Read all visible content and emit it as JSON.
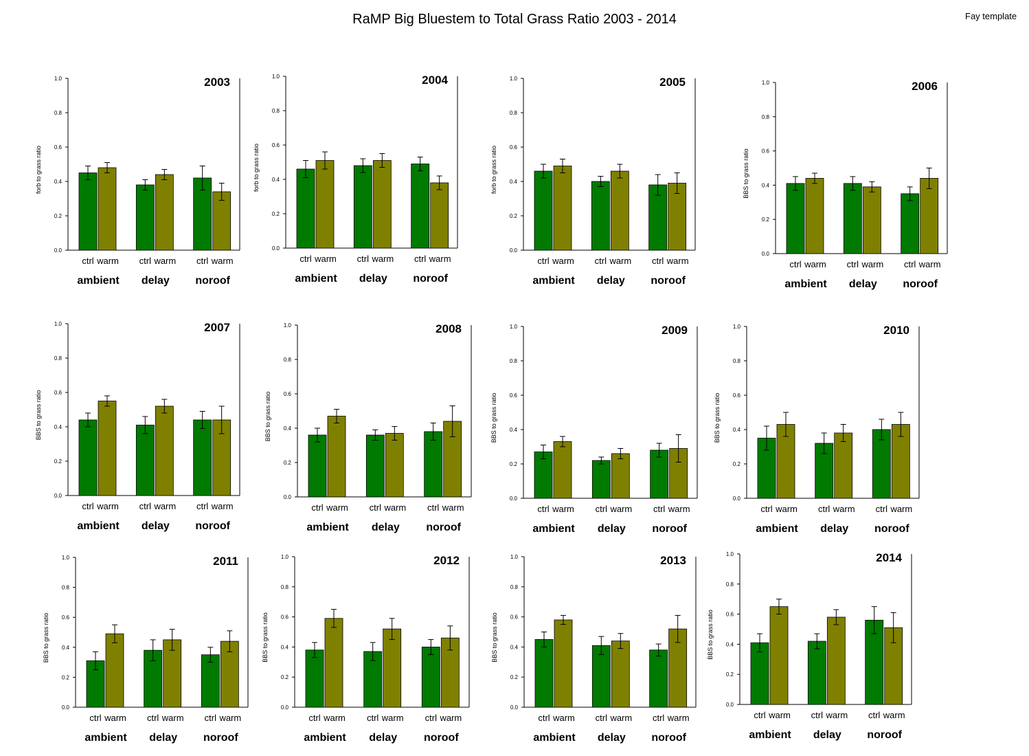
{
  "title": "RaMP Big Bluestem to Total Grass Ratio 2003 - 2014",
  "corner_note": "Fay template",
  "colors": {
    "ctrl": "#007a00",
    "warm": "#808000",
    "axis": "#000000"
  },
  "tick_labels": [
    "0.0",
    "0.2",
    "0.4",
    "0.6",
    "0.8",
    "1.0"
  ],
  "chart_data": [
    {
      "type": "bar",
      "title": "2003",
      "ylabel": "forb to grass ratio",
      "ylim": [
        0,
        1
      ],
      "categories": [
        "ambient",
        "delay",
        "noroof"
      ],
      "sublabels": [
        "ctrl",
        "warm"
      ],
      "series": [
        {
          "name": "ctrl",
          "values": [
            0.45,
            0.38,
            0.42
          ],
          "errors": [
            0.04,
            0.03,
            0.07
          ]
        },
        {
          "name": "warm",
          "values": [
            0.48,
            0.44,
            0.34
          ],
          "errors": [
            0.03,
            0.03,
            0.05
          ]
        }
      ]
    },
    {
      "type": "bar",
      "title": "2004",
      "ylabel": "forb to grass ratio",
      "ylim": [
        0,
        1
      ],
      "categories": [
        "ambient",
        "delay",
        "noroof"
      ],
      "sublabels": [
        "ctrl",
        "warm"
      ],
      "series": [
        {
          "name": "ctrl",
          "values": [
            0.46,
            0.48,
            0.49
          ],
          "errors": [
            0.05,
            0.04,
            0.04
          ]
        },
        {
          "name": "warm",
          "values": [
            0.51,
            0.51,
            0.38
          ],
          "errors": [
            0.05,
            0.04,
            0.04
          ]
        }
      ]
    },
    {
      "type": "bar",
      "title": "2005",
      "ylabel": "forb to grass ratio",
      "ylim": [
        0,
        1
      ],
      "categories": [
        "ambient",
        "delay",
        "noroof"
      ],
      "sublabels": [
        "ctrl",
        "warm"
      ],
      "series": [
        {
          "name": "ctrl",
          "values": [
            0.46,
            0.4,
            0.38
          ],
          "errors": [
            0.04,
            0.03,
            0.06
          ]
        },
        {
          "name": "warm",
          "values": [
            0.49,
            0.46,
            0.39
          ],
          "errors": [
            0.04,
            0.04,
            0.06
          ]
        }
      ]
    },
    {
      "type": "bar",
      "title": "2006",
      "ylabel": "BBS to grass ratio",
      "ylim": [
        0,
        1
      ],
      "categories": [
        "ambient",
        "delay",
        "noroof"
      ],
      "sublabels": [
        "ctrl",
        "warm"
      ],
      "series": [
        {
          "name": "ctrl",
          "values": [
            0.41,
            0.41,
            0.35
          ],
          "errors": [
            0.04,
            0.04,
            0.04
          ]
        },
        {
          "name": "warm",
          "values": [
            0.44,
            0.39,
            0.44
          ],
          "errors": [
            0.03,
            0.03,
            0.06
          ]
        }
      ]
    },
    {
      "type": "bar",
      "title": "2007",
      "ylabel": "BBS to grass ratio",
      "ylim": [
        0,
        1
      ],
      "categories": [
        "ambient",
        "delay",
        "noroof"
      ],
      "sublabels": [
        "ctrl",
        "warm"
      ],
      "series": [
        {
          "name": "ctrl",
          "values": [
            0.44,
            0.41,
            0.44
          ],
          "errors": [
            0.04,
            0.05,
            0.05
          ]
        },
        {
          "name": "warm",
          "values": [
            0.55,
            0.52,
            0.44
          ],
          "errors": [
            0.03,
            0.04,
            0.08
          ]
        }
      ]
    },
    {
      "type": "bar",
      "title": "2008",
      "ylabel": "BBS to grass ratio",
      "ylim": [
        0,
        1
      ],
      "categories": [
        "ambient",
        "delay",
        "noroof"
      ],
      "sublabels": [
        "ctrl",
        "warm"
      ],
      "series": [
        {
          "name": "ctrl",
          "values": [
            0.36,
            0.36,
            0.38
          ],
          "errors": [
            0.04,
            0.03,
            0.05
          ]
        },
        {
          "name": "warm",
          "values": [
            0.47,
            0.37,
            0.44
          ],
          "errors": [
            0.04,
            0.04,
            0.09
          ]
        }
      ]
    },
    {
      "type": "bar",
      "title": "2009",
      "ylabel": "BBS to grass ratio",
      "ylim": [
        0,
        1
      ],
      "categories": [
        "ambient",
        "delay",
        "noroof"
      ],
      "sublabels": [
        "ctrl",
        "warm"
      ],
      "series": [
        {
          "name": "ctrl",
          "values": [
            0.27,
            0.22,
            0.28
          ],
          "errors": [
            0.04,
            0.02,
            0.04
          ]
        },
        {
          "name": "warm",
          "values": [
            0.33,
            0.26,
            0.29
          ],
          "errors": [
            0.03,
            0.03,
            0.08
          ]
        }
      ]
    },
    {
      "type": "bar",
      "title": "2010",
      "ylabel": "BBS to grass ratio",
      "ylim": [
        0,
        1
      ],
      "categories": [
        "ambient",
        "delay",
        "noroof"
      ],
      "sublabels": [
        "ctrl",
        "warm"
      ],
      "series": [
        {
          "name": "ctrl",
          "values": [
            0.35,
            0.32,
            0.4
          ],
          "errors": [
            0.07,
            0.06,
            0.06
          ]
        },
        {
          "name": "warm",
          "values": [
            0.43,
            0.38,
            0.43
          ],
          "errors": [
            0.07,
            0.05,
            0.07
          ]
        }
      ]
    },
    {
      "type": "bar",
      "title": "2011",
      "ylabel": "BBS to grass ratio",
      "ylim": [
        0,
        1
      ],
      "categories": [
        "ambient",
        "delay",
        "noroof"
      ],
      "sublabels": [
        "ctrl",
        "warm"
      ],
      "series": [
        {
          "name": "ctrl",
          "values": [
            0.31,
            0.38,
            0.35
          ],
          "errors": [
            0.06,
            0.07,
            0.05
          ]
        },
        {
          "name": "warm",
          "values": [
            0.49,
            0.45,
            0.44
          ],
          "errors": [
            0.06,
            0.07,
            0.07
          ]
        }
      ]
    },
    {
      "type": "bar",
      "title": "2012",
      "ylabel": "BBS to grass ratio",
      "ylim": [
        0,
        1
      ],
      "categories": [
        "ambient",
        "delay",
        "noroof"
      ],
      "sublabels": [
        "ctrl",
        "warm"
      ],
      "series": [
        {
          "name": "ctrl",
          "values": [
            0.38,
            0.37,
            0.4
          ],
          "errors": [
            0.05,
            0.06,
            0.05
          ]
        },
        {
          "name": "warm",
          "values": [
            0.59,
            0.52,
            0.46
          ],
          "errors": [
            0.06,
            0.07,
            0.08
          ]
        }
      ]
    },
    {
      "type": "bar",
      "title": "2013",
      "ylabel": "BBS to grass ratio",
      "ylim": [
        0,
        1
      ],
      "categories": [
        "ambient",
        "delay",
        "noroof"
      ],
      "sublabels": [
        "ctrl",
        "warm"
      ],
      "series": [
        {
          "name": "ctrl",
          "values": [
            0.45,
            0.41,
            0.38
          ],
          "errors": [
            0.05,
            0.06,
            0.04
          ]
        },
        {
          "name": "warm",
          "values": [
            0.58,
            0.44,
            0.52
          ],
          "errors": [
            0.03,
            0.05,
            0.09
          ]
        }
      ]
    },
    {
      "type": "bar",
      "title": "2014",
      "ylabel": "BBS to grass ratio",
      "ylim": [
        0,
        1
      ],
      "categories": [
        "ambient",
        "delay",
        "noroof"
      ],
      "sublabels": [
        "ctrl",
        "warm"
      ],
      "series": [
        {
          "name": "ctrl",
          "values": [
            0.41,
            0.42,
            0.56
          ],
          "errors": [
            0.06,
            0.05,
            0.09
          ]
        },
        {
          "name": "warm",
          "values": [
            0.65,
            0.58,
            0.51
          ],
          "errors": [
            0.05,
            0.05,
            0.1
          ]
        }
      ]
    }
  ]
}
